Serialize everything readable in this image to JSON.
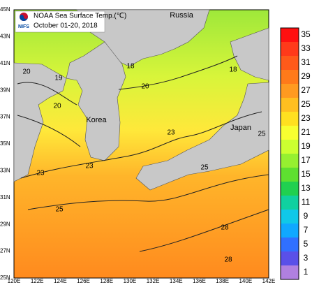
{
  "header": {
    "title": "NOAA Sea Surface Temp.(℃)",
    "subtitle": "October 01-20, 2018",
    "logo": "NIFS"
  },
  "lat_labels": [
    "25N",
    "27N",
    "29N",
    "31N",
    "33N",
    "35N",
    "37N",
    "39N",
    "41N",
    "43N",
    "45N"
  ],
  "lon_labels": [
    "120E",
    "122E",
    "124E",
    "126E",
    "128E",
    "130E",
    "132E",
    "134E",
    "136E",
    "138E",
    "140E",
    "142E"
  ],
  "places": [
    "Russia",
    "Korea",
    "Japan"
  ],
  "contour_labels": [
    "20",
    "19",
    "20",
    "18",
    "20",
    "18",
    "23",
    "23",
    "23",
    "25",
    "25",
    "25",
    "28",
    "28"
  ],
  "colorbar": {
    "labels": [
      35,
      33,
      31,
      29,
      27,
      25,
      23,
      21,
      19,
      17,
      15,
      13,
      11,
      9,
      7,
      5,
      3,
      1
    ],
    "colors": [
      "#ff1010",
      "#ff3a1a",
      "#ff5a1a",
      "#ff7a1a",
      "#ff9a20",
      "#ffbf20",
      "#ffe020",
      "#f8ff30",
      "#ccff30",
      "#96f030",
      "#5ee030",
      "#20d050",
      "#10d0a0",
      "#10c8e8",
      "#10a8ff",
      "#3070ff",
      "#5a50e8",
      "#b080e0"
    ]
  }
}
